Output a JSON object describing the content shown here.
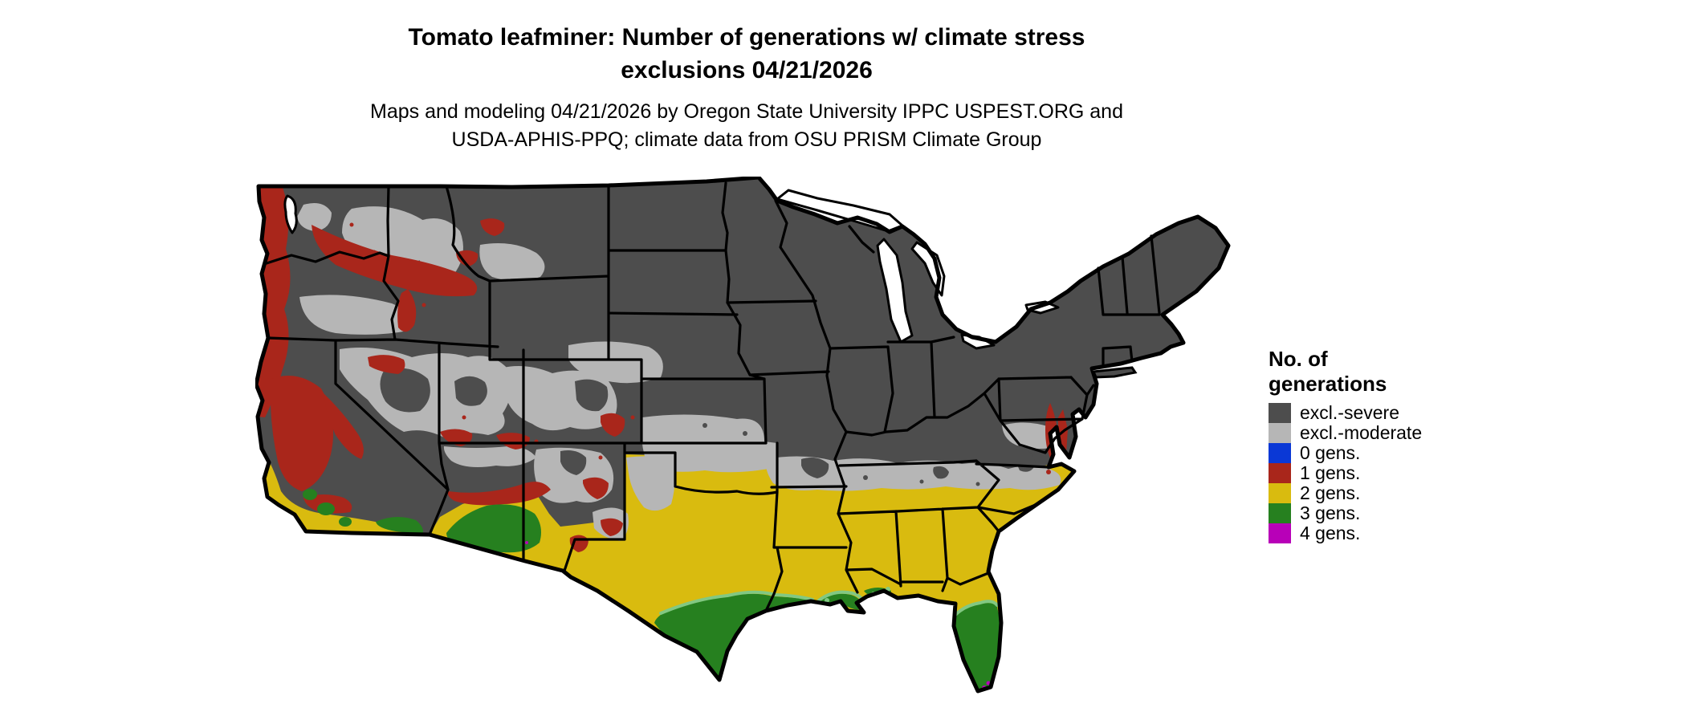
{
  "title": {
    "line1": "Tomato leafminer: Number of generations w/ climate stress",
    "line2": "exclusions 04/21/2026"
  },
  "subtitle": {
    "line1": "Maps and modeling 04/21/2026 by Oregon State University IPPC USPEST.ORG and",
    "line2": "USDA-APHIS-PPQ; climate data from OSU PRISM Climate Group"
  },
  "legend": {
    "title_line1": "No. of",
    "title_line2": "generations",
    "items": [
      {
        "label": "excl.-severe",
        "color": "#4d4d4d"
      },
      {
        "label": "excl.-moderate",
        "color": "#b6b6b6"
      },
      {
        "label": "0 gens.",
        "color": "#0a38d6"
      },
      {
        "label": "1 gens.",
        "color": "#a9261b"
      },
      {
        "label": "2 gens.",
        "color": "#d9bb0f"
      },
      {
        "label": "3 gens.",
        "color": "#26801f"
      },
      {
        "label": "4 gens.",
        "color": "#b800b8"
      }
    ]
  },
  "map": {
    "name": "Continental United States choropleth with state borders",
    "classes": {
      "severe": "#4d4d4d",
      "moderate": "#b6b6b6",
      "gens0": "#0a38d6",
      "gens1": "#a9261b",
      "gens2": "#d9bb0f",
      "gens3": "#26801f",
      "gens3l": "#82c882",
      "gens4": "#b800b8",
      "border": "#000000",
      "water": "#ffffff"
    },
    "region_summary": [
      {
        "class": "excl.-severe",
        "where": "Northern tier: Northeast, Great Lakes, upper Midwest, northern plains, Rockies and Cascades"
      },
      {
        "class": "excl.-moderate",
        "where": "Great Basin, Colorado Plateau, eastern WA/OR basins, central plains and a band across KS-OK-MO-KY-TN-VA-NC, Texas panhandle"
      },
      {
        "class": "1 gens.",
        "where": "Pacific coast of WA/OR/N-CA, Columbia basin rim, Sierra and mountain-west fringes, Mogollon Rim, Delmarva/Chesapeake shores"
      },
      {
        "class": "2 gens.",
        "where": "California valleys and south coast, southern AZ/NM margins, most of Texas, OK south, AR, LA, MS, AL, GA, SC, coastal NC, north FL"
      },
      {
        "class": "3 gens.",
        "where": "South Texas and Gulf coast, Louisiana coast, Florida peninsula, southern Arizona deserts, far southern California valleys"
      },
      {
        "class": "4 gens.",
        "where": "Southernmost tip of Texas, south Florida tip and the Florida Keys"
      }
    ]
  }
}
